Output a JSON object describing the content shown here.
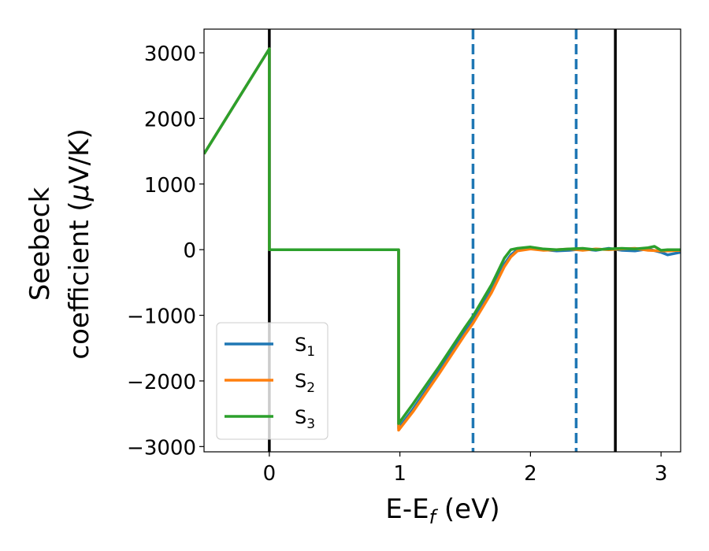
{
  "chart_data": {
    "type": "line",
    "xlabel": "E-E_f (eV)",
    "ylabel_line1": "Seebeck",
    "ylabel_line2": "coefficient  (μV/K)",
    "xlim": [
      -0.5,
      3.15
    ],
    "ylim": [
      -3080,
      3360
    ],
    "xticks": [
      0,
      1,
      2,
      3
    ],
    "yticks": [
      -3000,
      -2000,
      -1000,
      0,
      1000,
      2000,
      3000
    ],
    "xtick_labels": [
      "0",
      "1",
      "2",
      "3"
    ],
    "ytick_labels": [
      "−3000",
      "−2000",
      "−1000",
      "0",
      "1000",
      "2000",
      "3000"
    ],
    "grid": false,
    "legend_position": "lower-left",
    "series": [
      {
        "name": "S1",
        "label_main": "S",
        "label_sub": "1",
        "color": "#1f77b4",
        "x": [
          -0.5,
          0.0,
          0.0,
          0.99,
          0.99,
          1.1,
          1.3,
          1.5,
          1.56,
          1.7,
          1.8,
          1.85,
          1.9,
          2.0,
          2.1,
          2.2,
          2.3,
          2.4,
          2.5,
          2.6,
          2.7,
          2.8,
          2.9,
          3.0,
          3.05,
          3.15
        ],
        "y": [
          1460,
          3060,
          0,
          0,
          -2720,
          -2430,
          -1850,
          -1250,
          -1080,
          -620,
          -220,
          -80,
          0,
          30,
          0,
          -20,
          -10,
          10,
          -10,
          20,
          -10,
          -20,
          10,
          -40,
          -80,
          -40
        ]
      },
      {
        "name": "S2",
        "label_main": "S",
        "label_sub": "2",
        "color": "#ff7f0e",
        "x": [
          -0.5,
          0.0,
          0.0,
          0.99,
          0.99,
          1.1,
          1.3,
          1.5,
          1.56,
          1.7,
          1.8,
          1.85,
          1.9,
          2.0,
          2.1,
          2.2,
          2.3,
          2.4,
          2.5,
          2.6,
          2.7,
          2.8,
          2.9,
          3.0,
          3.05,
          3.15
        ],
        "y": [
          1460,
          3060,
          0,
          0,
          -2750,
          -2470,
          -1890,
          -1290,
          -1120,
          -660,
          -260,
          -110,
          -20,
          10,
          -10,
          0,
          10,
          -10,
          10,
          0,
          10,
          20,
          -10,
          -20,
          -20,
          -10
        ]
      },
      {
        "name": "S3",
        "label_main": "S",
        "label_sub": "3",
        "color": "#2ca02c",
        "x": [
          -0.5,
          0.0,
          0.0,
          0.99,
          0.99,
          1.1,
          1.3,
          1.5,
          1.56,
          1.7,
          1.8,
          1.85,
          1.9,
          2.0,
          2.1,
          2.2,
          2.3,
          2.4,
          2.5,
          2.6,
          2.7,
          2.8,
          2.9,
          2.95,
          3.0,
          3.05,
          3.15
        ],
        "y": [
          1460,
          3060,
          0,
          0,
          -2650,
          -2350,
          -1780,
          -1180,
          -1010,
          -540,
          -130,
          0,
          20,
          40,
          10,
          0,
          10,
          20,
          0,
          10,
          20,
          10,
          30,
          50,
          -10,
          0,
          0
        ]
      }
    ],
    "vertical_lines": [
      {
        "x": 0.0,
        "color": "#000000",
        "style": "solid"
      },
      {
        "x": 2.65,
        "color": "#000000",
        "style": "solid"
      },
      {
        "x": 1.56,
        "color": "#1f77b4",
        "style": "dashed"
      },
      {
        "x": 2.35,
        "color": "#1f77b4",
        "style": "dashed"
      }
    ]
  }
}
